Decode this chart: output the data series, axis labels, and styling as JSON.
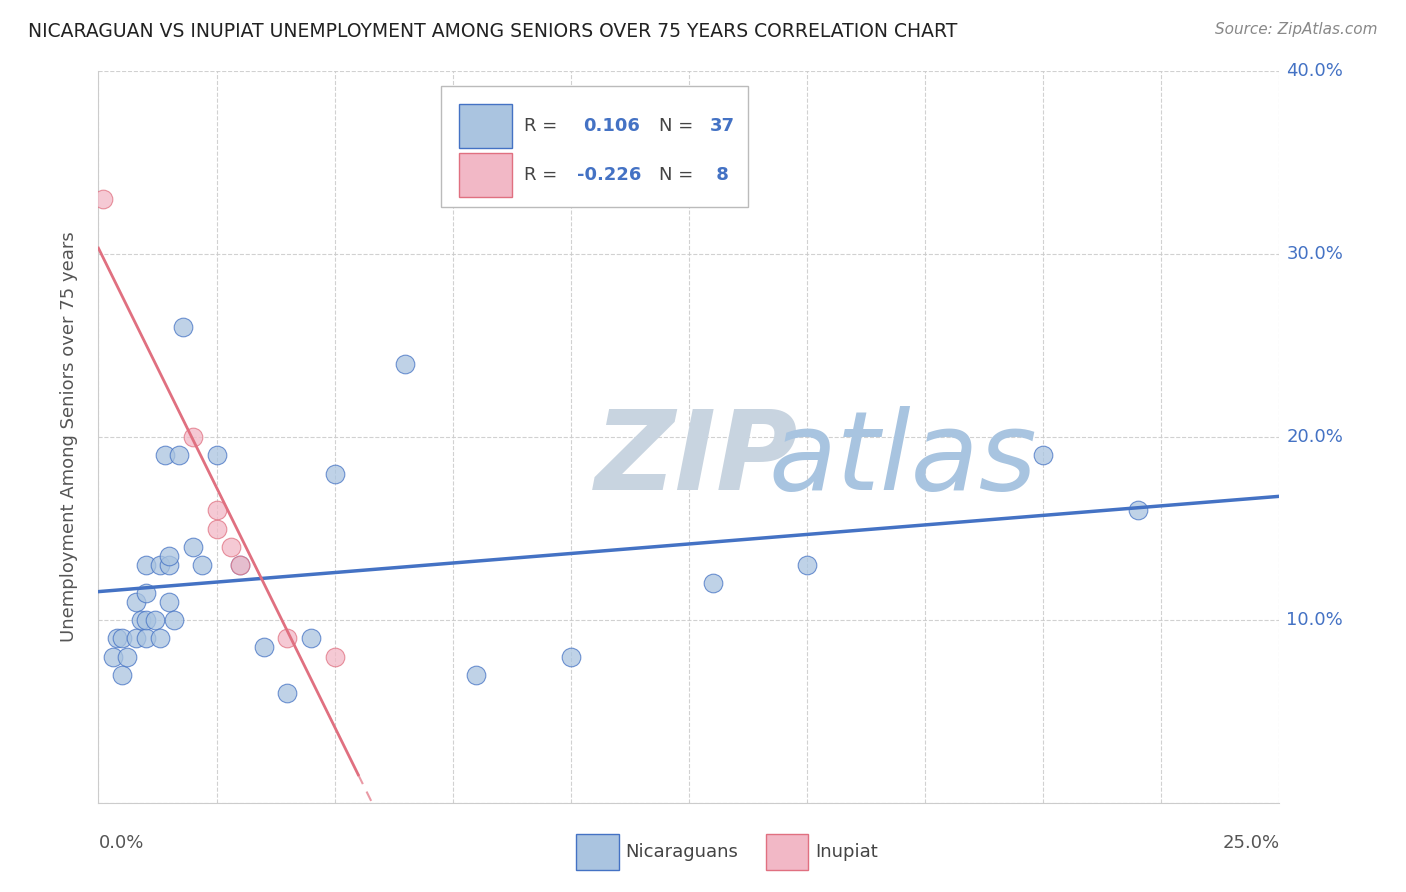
{
  "title": "NICARAGUAN VS INUPIAT UNEMPLOYMENT AMONG SENIORS OVER 75 YEARS CORRELATION CHART",
  "source": "Source: ZipAtlas.com",
  "yaxis_label": "Unemployment Among Seniors over 75 years",
  "legend_label1": "Nicaraguans",
  "legend_label2": "Inupiat",
  "blue_color": "#aac4e0",
  "pink_color": "#f2b8c6",
  "blue_line_color": "#4472c4",
  "pink_line_color": "#e07080",
  "pink_line_solid_color": "#e07080",
  "watermark_zip_color": "#c8d8e8",
  "watermark_atlas_color": "#a8c8e8",
  "xlim": [
    0.0,
    0.25
  ],
  "ylim": [
    0.0,
    0.4
  ],
  "yticks": [
    0.0,
    0.1,
    0.2,
    0.3,
    0.4
  ],
  "ytick_labels": [
    "",
    "10.0%",
    "20.0%",
    "30.0%",
    "40.0%"
  ],
  "blue_scatter_x": [
    0.003,
    0.004,
    0.005,
    0.005,
    0.006,
    0.008,
    0.008,
    0.009,
    0.01,
    0.01,
    0.01,
    0.01,
    0.012,
    0.013,
    0.013,
    0.014,
    0.015,
    0.015,
    0.015,
    0.016,
    0.017,
    0.018,
    0.02,
    0.022,
    0.025,
    0.03,
    0.035,
    0.04,
    0.045,
    0.05,
    0.065,
    0.08,
    0.1,
    0.13,
    0.15,
    0.2,
    0.22
  ],
  "blue_scatter_y": [
    0.08,
    0.09,
    0.07,
    0.09,
    0.08,
    0.09,
    0.11,
    0.1,
    0.09,
    0.1,
    0.115,
    0.13,
    0.1,
    0.09,
    0.13,
    0.19,
    0.11,
    0.13,
    0.135,
    0.1,
    0.19,
    0.26,
    0.14,
    0.13,
    0.19,
    0.13,
    0.085,
    0.06,
    0.09,
    0.18,
    0.24,
    0.07,
    0.08,
    0.12,
    0.13,
    0.19,
    0.16
  ],
  "pink_scatter_x": [
    0.001,
    0.02,
    0.025,
    0.025,
    0.028,
    0.03,
    0.04,
    0.05
  ],
  "pink_scatter_y": [
    0.33,
    0.2,
    0.15,
    0.16,
    0.14,
    0.13,
    0.09,
    0.08
  ]
}
